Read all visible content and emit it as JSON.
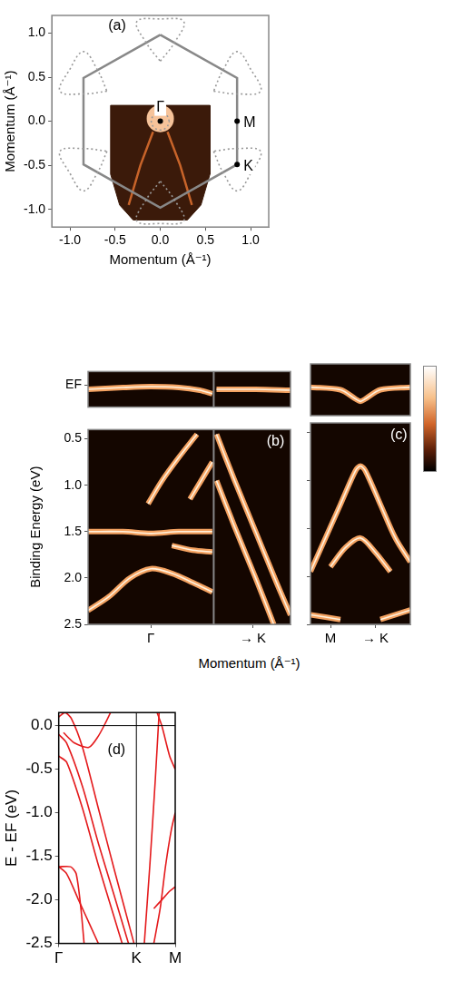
{
  "chart_data": [
    {
      "panel_label": "(a)",
      "type": "scatter",
      "xlabel": "Momentum (Å⁻¹)",
      "ylabel": "Momentum (Å⁻¹)",
      "xlim": [
        -1.2,
        1.2
      ],
      "ylim": [
        -1.2,
        1.2
      ],
      "xticks": [
        {
          "value": -1,
          "label": "-1.0"
        },
        -0.5,
        {
          "value": 0,
          "label": "0.0"
        },
        0.5,
        {
          "value": 1,
          "label": "1.0"
        }
      ],
      "yticks": [
        {
          "value": -1,
          "label": "-1.0"
        },
        -0.5,
        {
          "value": 0,
          "label": "0.0"
        },
        0.5,
        {
          "value": 1,
          "label": "1.0"
        }
      ],
      "grid": false,
      "series": [
        {
          "type": "area",
          "color": "#3b1a0a",
          "values": [
            [
              -0.55,
              0.18
            ],
            [
              0.55,
              0.18
            ],
            [
              0.55,
              -0.6
            ],
            [
              0.45,
              -0.95
            ],
            [
              0.3,
              -1.12
            ],
            [
              -0.3,
              -1.12
            ],
            [
              -0.45,
              -0.95
            ],
            [
              -0.55,
              -0.6
            ],
            [
              -0.55,
              0.18
            ]
          ]
        },
        {
          "color": "#c8642a",
          "line_style": "solid",
          "values": [
            [
              -0.08,
              -0.12
            ],
            [
              -0.22,
              -0.5
            ],
            [
              -0.35,
              -0.95
            ]
          ]
        },
        {
          "color": "#c8642a",
          "line_style": "solid",
          "values": [
            [
              0.08,
              -0.12
            ],
            [
              0.22,
              -0.5
            ],
            [
              0.35,
              -0.95
            ]
          ]
        },
        {
          "type": "scatter",
          "marker": "glow",
          "color": "#f6c39a",
          "values": [
            [
              0,
              0.03
            ]
          ]
        },
        {
          "color": "#888888",
          "line_style": "solid",
          "values": [
            [
              0,
              0.98
            ],
            [
              0.85,
              0.49
            ],
            [
              0.85,
              -0.49
            ],
            [
              0,
              -0.98
            ],
            [
              -0.85,
              -0.49
            ],
            [
              -0.85,
              0.49
            ],
            [
              0,
              0.98
            ]
          ]
        },
        {
          "color": "#999999",
          "line_style": "dotted",
          "values": [
            [
              0.1,
              0
            ],
            [
              0.07,
              0.07
            ],
            [
              0,
              0.1
            ],
            [
              -0.07,
              0.07
            ],
            [
              -0.1,
              0
            ],
            [
              -0.07,
              -0.07
            ],
            [
              0,
              -0.1
            ],
            [
              0.07,
              -0.07
            ],
            [
              0.1,
              0
            ]
          ]
        },
        {
          "color": "#999999",
          "line_style": "dotted",
          "values": [
            [
              0,
              0.68
            ],
            [
              0.156,
              0.89
            ],
            [
              0.26,
              1.13
            ],
            [
              0,
              1.16
            ],
            [
              -0.26,
              1.13
            ],
            [
              -0.156,
              0.89
            ],
            [
              0,
              0.68
            ]
          ]
        },
        {
          "color": "#999999",
          "line_style": "dotted",
          "values": [
            [
              0.59,
              0.34
            ],
            [
              0.85,
              0.31
            ],
            [
              1.11,
              0.34
            ],
            [
              1.006,
              0.58
            ],
            [
              0.85,
              0.79
            ],
            [
              0.694,
              0.58
            ],
            [
              0.59,
              0.34
            ]
          ]
        },
        {
          "color": "#999999",
          "line_style": "dotted",
          "values": [
            [
              0.59,
              -0.34
            ],
            [
              0.694,
              -0.58
            ],
            [
              0.85,
              -0.79
            ],
            [
              1.006,
              -0.58
            ],
            [
              1.11,
              -0.34
            ],
            [
              0.85,
              -0.31
            ],
            [
              0.59,
              -0.34
            ]
          ]
        },
        {
          "color": "#999999",
          "line_style": "dotted",
          "values": [
            [
              0,
              -0.68
            ],
            [
              0.156,
              -0.89
            ],
            [
              0.26,
              -1.13
            ],
            [
              0,
              -1.16
            ],
            [
              -0.26,
              -1.13
            ],
            [
              -0.156,
              -0.89
            ],
            [
              0,
              -0.68
            ]
          ]
        },
        {
          "color": "#999999",
          "line_style": "dotted",
          "values": [
            [
              -0.59,
              -0.34
            ],
            [
              -0.694,
              -0.58
            ],
            [
              -0.85,
              -0.79
            ],
            [
              -1.006,
              -0.58
            ],
            [
              -1.11,
              -0.34
            ],
            [
              -0.85,
              -0.31
            ],
            [
              -0.59,
              -0.34
            ]
          ]
        },
        {
          "color": "#999999",
          "line_style": "dotted",
          "values": [
            [
              -0.59,
              0.34
            ],
            [
              -0.85,
              0.31
            ],
            [
              -1.11,
              0.34
            ],
            [
              -1.006,
              0.58
            ],
            [
              -0.85,
              0.79
            ],
            [
              -0.694,
              0.58
            ],
            [
              -0.59,
              0.34
            ]
          ]
        }
      ],
      "points": [
        {
          "label": "Γ",
          "x": 0,
          "y": 0
        },
        {
          "label": "M",
          "x": 0.85,
          "y": 0
        },
        {
          "label": "K",
          "x": 0.85,
          "y": -0.49
        }
      ]
    },
    {
      "panel_label": "(b)",
      "type": "line",
      "xlabel": "Momentum (Å⁻¹)",
      "ylabel": "Binding Energy (eV)",
      "xlim": [
        -0.45,
        1.0
      ],
      "ylim": [
        2.5,
        0.4
      ],
      "xticks": [
        {
          "value": 0,
          "label": "Γ"
        },
        {
          "value": 0.73,
          "label": "→ K"
        }
      ],
      "yticks": [
        0.5,
        {
          "value": 1,
          "label": "1.0"
        },
        1.5,
        {
          "value": 2,
          "label": "2.0"
        },
        2.5
      ],
      "grid": false,
      "vlines": [
        0.45
      ],
      "series": [
        {
          "color": "#f4a261",
          "values": [
            [
              0.33,
              0.45
            ],
            [
              0.2,
              0.7
            ],
            [
              0.08,
              0.95
            ],
            [
              -0.02,
              1.2
            ]
          ]
        },
        {
          "color": "#f4a261",
          "values": [
            [
              0.44,
              0.75
            ],
            [
              0.36,
              0.95
            ],
            [
              0.28,
              1.15
            ]
          ]
        },
        {
          "color": "#f4a261",
          "values": [
            [
              -0.45,
              1.5
            ],
            [
              -0.2,
              1.5
            ],
            [
              0,
              1.52
            ],
            [
              0.2,
              1.5
            ],
            [
              0.44,
              1.5
            ]
          ]
        },
        {
          "color": "#f4a261",
          "values": [
            [
              0.15,
              1.65
            ],
            [
              0.3,
              1.7
            ],
            [
              0.44,
              1.72
            ]
          ]
        },
        {
          "color": "#f4a261",
          "values": [
            [
              -0.45,
              2.35
            ],
            [
              -0.3,
              2.2
            ],
            [
              -0.15,
              2.0
            ],
            [
              0,
              1.9
            ],
            [
              0.15,
              1.95
            ],
            [
              0.3,
              2.05
            ],
            [
              0.44,
              2.15
            ]
          ]
        },
        {
          "color": "#f4a261",
          "values": [
            [
              0.47,
              0.45
            ],
            [
              0.6,
              0.95
            ],
            [
              0.75,
              1.5
            ],
            [
              0.9,
              2.05
            ],
            [
              1.0,
              2.4
            ]
          ]
        },
        {
          "color": "#f4a261",
          "values": [
            [
              0.47,
              0.95
            ],
            [
              0.6,
              1.45
            ],
            [
              0.75,
              2.0
            ],
            [
              0.88,
              2.5
            ]
          ]
        }
      ],
      "ef_strip": {
        "ylim": [
          0.25,
          -0.15
        ],
        "yticks": [
          {
            "value": 0,
            "label": "EF"
          }
        ],
        "series": [
          {
            "color": "#f4a261",
            "values": [
              [
                -0.45,
                0.05
              ],
              [
                -0.2,
                0.03
              ],
              [
                0,
                0.02
              ],
              [
                0.2,
                0.03
              ],
              [
                0.35,
                0.06
              ],
              [
                0.44,
                0.1
              ]
            ]
          },
          {
            "color": "#f4a261",
            "values": [
              [
                0.47,
                0.05
              ],
              [
                0.75,
                0.05
              ],
              [
                1.0,
                0.06
              ]
            ]
          }
        ]
      }
    },
    {
      "panel_label": "(c)",
      "type": "line",
      "xlim": [
        0,
        1
      ],
      "ylim": [
        2.5,
        0.4
      ],
      "xticks": [
        {
          "value": 0.2,
          "label": "M"
        },
        {
          "value": 0.65,
          "label": "→ K"
        }
      ],
      "yticks": [
        0.5,
        {
          "value": 1,
          "label": "1.0"
        },
        1.5,
        {
          "value": 2,
          "label": "2.0"
        },
        2.5
      ],
      "tick_labels": "x",
      "grid": false,
      "series": [
        {
          "color": "#f4a261",
          "values": [
            [
              0,
              1.95
            ],
            [
              0.15,
              1.6
            ],
            [
              0.3,
              1.25
            ],
            [
              0.45,
              0.9
            ],
            [
              0.5,
              0.85
            ],
            [
              0.55,
              0.9
            ],
            [
              0.7,
              1.25
            ],
            [
              0.85,
              1.6
            ],
            [
              1.0,
              1.85
            ]
          ]
        },
        {
          "color": "#f4a261",
          "values": [
            [
              0.2,
              1.9
            ],
            [
              0.35,
              1.7
            ],
            [
              0.5,
              1.6
            ],
            [
              0.65,
              1.75
            ],
            [
              0.8,
              1.95
            ]
          ]
        },
        {
          "color": "#f4a261",
          "values": [
            [
              0,
              2.4
            ],
            [
              0.3,
              2.45
            ]
          ]
        },
        {
          "color": "#f4a261",
          "values": [
            [
              0.7,
              2.45
            ],
            [
              1.0,
              2.35
            ]
          ]
        }
      ],
      "ef_strip": {
        "ylim": [
          0.25,
          -0.15
        ],
        "series": [
          {
            "color": "#f4a261",
            "values": [
              [
                0,
                0.03
              ],
              [
                0.3,
                0.05
              ],
              [
                0.45,
                0.12
              ],
              [
                0.5,
                0.14
              ],
              [
                0.55,
                0.12
              ],
              [
                0.7,
                0.05
              ],
              [
                1,
                0.03
              ]
            ]
          }
        ]
      }
    },
    {
      "panel_label": "(d)",
      "type": "line",
      "ylabel": "E - EF (eV)",
      "xlim": [
        0,
        1.47
      ],
      "ylim": [
        -2.5,
        0.15
      ],
      "xticks": [
        {
          "value": 0,
          "label": "Γ"
        },
        {
          "value": 0.98,
          "label": "K"
        },
        {
          "value": 1.47,
          "label": "M"
        }
      ],
      "yticks": [
        {
          "value": 0,
          "label": "0.0"
        },
        -0.5,
        {
          "value": -1,
          "label": "-1.0"
        },
        -1.5,
        {
          "value": -2,
          "label": "-2.0"
        },
        -2.5
      ],
      "grid": false,
      "hlines": [
        0
      ],
      "vlines": [
        0.98
      ],
      "color": "#e41a1c",
      "series": [
        {
          "values": [
            [
              0,
              0.1
            ],
            [
              0.08,
              0.15
            ],
            [
              0.16,
              0.08
            ],
            [
              0.3,
              -0.25
            ],
            [
              0.5,
              -0.95
            ],
            [
              0.7,
              -1.65
            ],
            [
              0.95,
              -2.5
            ]
          ]
        },
        {
          "values": [
            [
              0,
              -0.1
            ],
            [
              0.1,
              -0.2
            ],
            [
              0.3,
              -0.7
            ],
            [
              0.5,
              -1.35
            ],
            [
              0.7,
              -1.95
            ],
            [
              0.88,
              -2.5
            ]
          ]
        },
        {
          "values": [
            [
              0,
              -0.35
            ],
            [
              0.1,
              -0.42
            ],
            [
              0.3,
              -0.95
            ],
            [
              0.5,
              -1.6
            ],
            [
              0.7,
              -2.2
            ],
            [
              0.8,
              -2.5
            ]
          ]
        },
        {
          "values": [
            [
              0,
              -1.62
            ],
            [
              0.15,
              -1.62
            ],
            [
              0.22,
              -1.7
            ],
            [
              0.28,
              -2.1
            ],
            [
              0.32,
              -2.5
            ]
          ]
        },
        {
          "values": [
            [
              0,
              -1.62
            ],
            [
              0.1,
              -1.7
            ],
            [
              0.25,
              -2.0
            ],
            [
              0.4,
              -2.3
            ],
            [
              0.5,
              -2.5
            ]
          ]
        },
        {
          "values": [
            [
              0.06,
              -0.08
            ],
            [
              0.2,
              -0.2
            ],
            [
              0.38,
              -0.25
            ],
            [
              0.5,
              -0.12
            ],
            [
              0.6,
              0.05
            ],
            [
              0.68,
              0.2
            ]
          ]
        },
        {
          "values": [
            [
              1.08,
              -2.5
            ],
            [
              1.15,
              -1.6
            ],
            [
              1.22,
              -0.6
            ],
            [
              1.27,
              0.2
            ]
          ]
        },
        {
          "values": [
            [
              1.22,
              0.2
            ],
            [
              1.3,
              0.0
            ],
            [
              1.4,
              -0.35
            ],
            [
              1.47,
              -0.5
            ]
          ]
        },
        {
          "values": [
            [
              1.2,
              -2.5
            ],
            [
              1.28,
              -2.1
            ],
            [
              1.35,
              -1.6
            ],
            [
              1.42,
              -1.2
            ],
            [
              1.47,
              -1.0
            ]
          ]
        },
        {
          "values": [
            [
              1.2,
              -2.1
            ],
            [
              1.3,
              -2.0
            ],
            [
              1.4,
              -1.9
            ],
            [
              1.47,
              -1.85
            ]
          ]
        }
      ]
    }
  ]
}
